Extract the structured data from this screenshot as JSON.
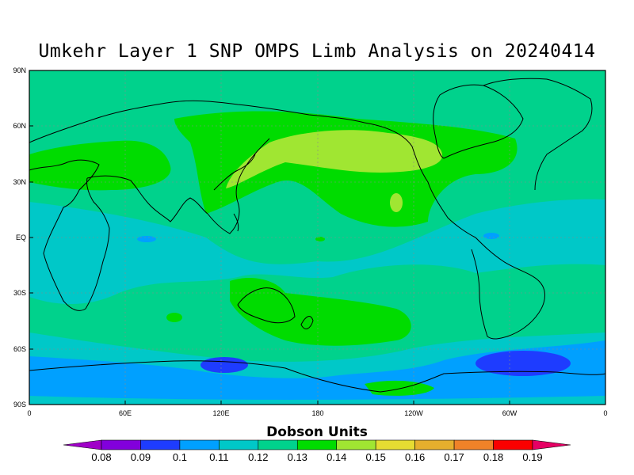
{
  "title": "Umkehr Layer 1 SNP OMPS Limb Analysis on 20240414",
  "lat_ticks": [
    "90N",
    "60N",
    "30N",
    "EQ",
    "30S",
    "60S",
    "90S"
  ],
  "lon_ticks": [
    "0",
    "60E",
    "120E",
    "180",
    "120W",
    "60W",
    "0"
  ],
  "colorbar": {
    "label": "Dobson Units",
    "ticks": [
      "0.08",
      "0.09",
      "0.1",
      "0.11",
      "0.12",
      "0.13",
      "0.14",
      "0.15",
      "0.16",
      "0.17",
      "0.18",
      "0.19"
    ],
    "colors": [
      "#a000c8",
      "#8200dc",
      "#1e3cff",
      "#00a0ff",
      "#00c8c8",
      "#00d28c",
      "#00dc00",
      "#a0e632",
      "#e6dc32",
      "#e6af2d",
      "#f08228",
      "#fa0000",
      "#e60064"
    ]
  },
  "map_colors": {
    "ocean_base": "#00d28c",
    "band_011": "#00a0ff",
    "band_012": "#00c8c8",
    "band_009": "#1e3cff",
    "band_014": "#00dc00",
    "band_015": "#a0e632"
  }
}
